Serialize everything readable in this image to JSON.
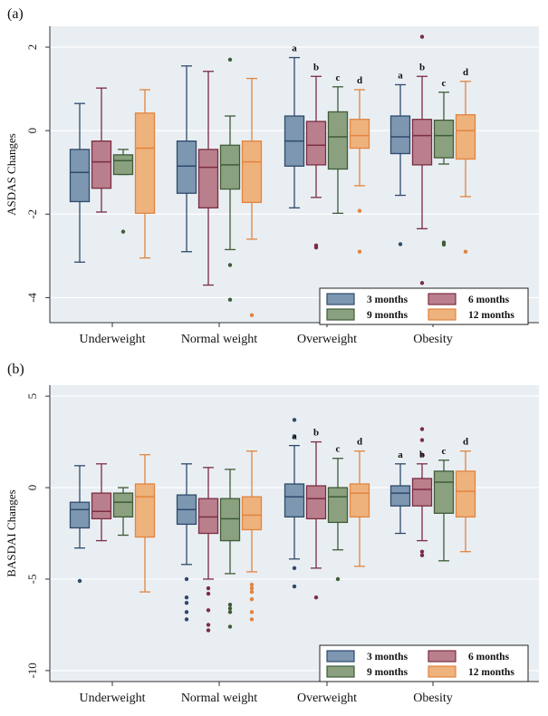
{
  "colors": {
    "plot_bg": "#e9eef2",
    "grid": "#ffffff",
    "axis": "#333333",
    "series_fill": [
      "#7d97b1",
      "#b97f8c",
      "#8ba07f",
      "#eeb27d"
    ],
    "series_edge": [
      "#2e4a6d",
      "#7b2d43",
      "#3e5c38",
      "#e2843f"
    ]
  },
  "chart_data": [
    {
      "panel_label": "(a)",
      "type": "box",
      "ylabel": "ASDAS Changes",
      "ylim": [
        -4.6,
        2.5
      ],
      "yticks": [
        2,
        0,
        -2,
        -4
      ],
      "categories": [
        "Underweight",
        "Normal weight",
        "Overweight",
        "Obesity"
      ],
      "legend": [
        "3 months",
        "6 months",
        "9 months",
        "12 months"
      ],
      "series": [
        {
          "name": "3 months",
          "boxes": [
            {
              "lw": -3.15,
              "q1": -1.7,
              "med": -1.0,
              "q3": -0.45,
              "uw": 0.65,
              "outliers": []
            },
            {
              "lw": -2.9,
              "q1": -1.5,
              "med": -0.85,
              "q3": -0.25,
              "uw": 1.55,
              "outliers": []
            },
            {
              "lw": -1.85,
              "q1": -0.85,
              "med": -0.25,
              "q3": 0.35,
              "uw": 1.75,
              "outliers": []
            },
            {
              "lw": -1.55,
              "q1": -0.55,
              "med": -0.15,
              "q3": 0.35,
              "uw": 1.1,
              "outliers": [
                -2.72
              ]
            }
          ]
        },
        {
          "name": "6 months",
          "boxes": [
            {
              "lw": -1.95,
              "q1": -1.38,
              "med": -0.75,
              "q3": -0.25,
              "uw": 1.02,
              "outliers": []
            },
            {
              "lw": -3.7,
              "q1": -1.85,
              "med": -0.88,
              "q3": -0.45,
              "uw": 1.42,
              "outliers": []
            },
            {
              "lw": -1.6,
              "q1": -0.82,
              "med": -0.35,
              "q3": 0.22,
              "uw": 1.3,
              "outliers": [
                -2.75,
                -2.8
              ]
            },
            {
              "lw": -2.35,
              "q1": -0.82,
              "med": -0.12,
              "q3": 0.27,
              "uw": 1.3,
              "outliers": [
                -3.65,
                2.25
              ]
            }
          ]
        },
        {
          "name": "9 months",
          "boxes": [
            {
              "lw": -1.05,
              "q1": -1.05,
              "med": -0.72,
              "q3": -0.58,
              "uw": -0.45,
              "outliers": [
                -2.42
              ]
            },
            {
              "lw": -2.85,
              "q1": -1.4,
              "med": -0.82,
              "q3": -0.35,
              "uw": 0.35,
              "outliers": [
                -3.22,
                -4.05,
                1.7
              ]
            },
            {
              "lw": -1.98,
              "q1": -0.92,
              "med": -0.15,
              "q3": 0.45,
              "uw": 1.05,
              "outliers": []
            },
            {
              "lw": -0.8,
              "q1": -0.65,
              "med": -0.12,
              "q3": 0.25,
              "uw": 0.92,
              "outliers": [
                -2.68,
                -2.73
              ]
            }
          ]
        },
        {
          "name": "12 months",
          "boxes": [
            {
              "lw": -3.05,
              "q1": -1.98,
              "med": -0.42,
              "q3": 0.42,
              "uw": 0.98,
              "outliers": []
            },
            {
              "lw": -2.6,
              "q1": -1.72,
              "med": -0.75,
              "q3": -0.25,
              "uw": 1.25,
              "outliers": [
                -4.42
              ]
            },
            {
              "lw": -1.32,
              "q1": -0.42,
              "med": -0.12,
              "q3": 0.27,
              "uw": 0.98,
              "outliers": [
                -1.92,
                -2.9
              ]
            },
            {
              "lw": -1.58,
              "q1": -0.68,
              "med": 0.0,
              "q3": 0.38,
              "uw": 1.18,
              "outliers": [
                -2.9
              ]
            }
          ]
        }
      ],
      "annotations": [
        {
          "text": "a",
          "category": 2,
          "series": 0
        },
        {
          "text": "b",
          "category": 2,
          "series": 1
        },
        {
          "text": "c",
          "category": 2,
          "series": 2
        },
        {
          "text": "d",
          "category": 2,
          "series": 3
        },
        {
          "text": "a",
          "category": 3,
          "series": 0
        },
        {
          "text": "b",
          "category": 3,
          "series": 1
        },
        {
          "text": "c",
          "category": 3,
          "series": 2
        },
        {
          "text": "d",
          "category": 3,
          "series": 3
        }
      ]
    },
    {
      "panel_label": "(b)",
      "type": "box",
      "ylabel": "BASDAI Changes",
      "ylim": [
        -10.6,
        5.6
      ],
      "yticks": [
        5,
        0,
        -5,
        -10
      ],
      "categories": [
        "Underweight",
        "Normal weight",
        "Overweight",
        "Obesity"
      ],
      "legend": [
        "3 months",
        "6 months",
        "9 months",
        "12 months"
      ],
      "series": [
        {
          "name": "3 months",
          "boxes": [
            {
              "lw": -3.3,
              "q1": -2.2,
              "med": -1.2,
              "q3": -0.8,
              "uw": 1.2,
              "outliers": [
                -5.1
              ]
            },
            {
              "lw": -4.2,
              "q1": -2.0,
              "med": -1.2,
              "q3": -0.4,
              "uw": 1.3,
              "outliers": [
                -5.0,
                -6.0,
                -6.3,
                -6.8,
                -7.2
              ]
            },
            {
              "lw": -3.9,
              "q1": -1.6,
              "med": -0.5,
              "q3": 0.2,
              "uw": 2.3,
              "outliers": [
                -4.4,
                -5.4,
                3.7,
                2.8
              ]
            },
            {
              "lw": -2.5,
              "q1": -1.0,
              "med": -0.3,
              "q3": 0.1,
              "uw": 1.3,
              "outliers": []
            }
          ]
        },
        {
          "name": "6 months",
          "boxes": [
            {
              "lw": -2.9,
              "q1": -1.7,
              "med": -1.3,
              "q3": -0.3,
              "uw": 1.3,
              "outliers": []
            },
            {
              "lw": -5.0,
              "q1": -2.5,
              "med": -1.6,
              "q3": -0.6,
              "uw": 1.1,
              "outliers": [
                -5.5,
                -5.8,
                -6.7,
                -7.5,
                -7.8
              ]
            },
            {
              "lw": -4.4,
              "q1": -1.7,
              "med": -0.6,
              "q3": 0.1,
              "uw": 2.5,
              "outliers": [
                -6.0
              ]
            },
            {
              "lw": -2.9,
              "q1": -1.0,
              "med": -0.1,
              "q3": 0.5,
              "uw": 1.3,
              "outliers": [
                -3.5,
                -3.7,
                1.8,
                2.6,
                3.2
              ]
            }
          ]
        },
        {
          "name": "9 months",
          "boxes": [
            {
              "lw": -2.6,
              "q1": -1.6,
              "med": -0.8,
              "q3": -0.3,
              "uw": 0.0,
              "outliers": []
            },
            {
              "lw": -4.7,
              "q1": -2.9,
              "med": -1.7,
              "q3": -0.6,
              "uw": 1.0,
              "outliers": [
                -6.4,
                -6.6,
                -6.8,
                -7.6
              ]
            },
            {
              "lw": -3.4,
              "q1": -1.9,
              "med": -0.5,
              "q3": 0.0,
              "uw": 1.6,
              "outliers": [
                -5.0
              ]
            },
            {
              "lw": -4.0,
              "q1": -1.4,
              "med": 0.3,
              "q3": 0.9,
              "uw": 1.5,
              "outliers": []
            }
          ]
        },
        {
          "name": "12 months",
          "boxes": [
            {
              "lw": -5.7,
              "q1": -2.7,
              "med": -0.5,
              "q3": 0.2,
              "uw": 1.8,
              "outliers": []
            },
            {
              "lw": -4.6,
              "q1": -2.3,
              "med": -1.5,
              "q3": -0.5,
              "uw": 2.0,
              "outliers": [
                -5.3,
                -5.5,
                -5.7,
                -6.1,
                -6.8,
                -7.2
              ]
            },
            {
              "lw": -4.3,
              "q1": -1.6,
              "med": -0.3,
              "q3": 0.2,
              "uw": 2.0,
              "outliers": []
            },
            {
              "lw": -3.5,
              "q1": -1.6,
              "med": -0.2,
              "q3": 0.9,
              "uw": 2.0,
              "outliers": []
            }
          ]
        }
      ],
      "annotations": [
        {
          "text": "a",
          "category": 2,
          "series": 0
        },
        {
          "text": "b",
          "category": 2,
          "series": 1
        },
        {
          "text": "c",
          "category": 2,
          "series": 2
        },
        {
          "text": "d",
          "category": 2,
          "series": 3
        },
        {
          "text": "a",
          "category": 3,
          "series": 0
        },
        {
          "text": "b",
          "category": 3,
          "series": 1
        },
        {
          "text": "c",
          "category": 3,
          "series": 2
        },
        {
          "text": "d",
          "category": 3,
          "series": 3
        }
      ]
    }
  ]
}
